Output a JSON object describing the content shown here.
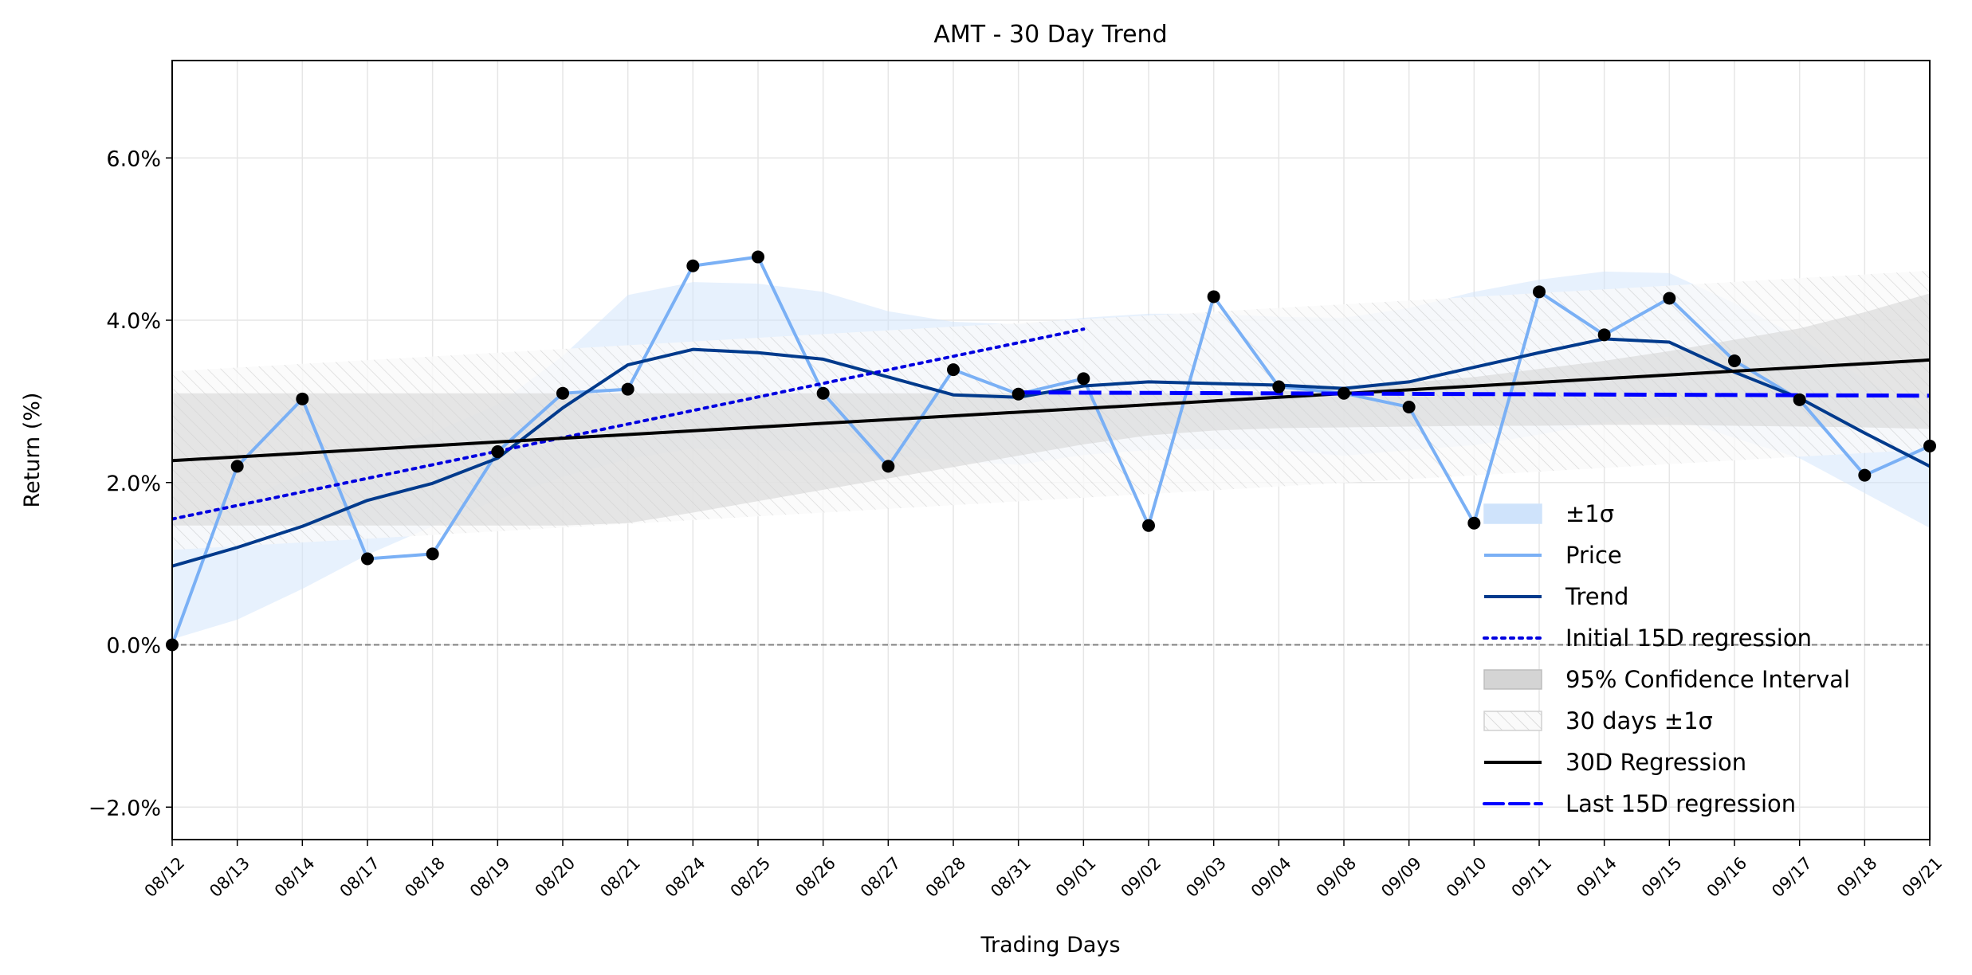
{
  "chart_data": {
    "type": "line",
    "title": "AMT - 30 Day Trend",
    "xlabel": "Trading Days",
    "ylabel": "Return (%)",
    "categories": [
      "08/12",
      "08/13",
      "08/14",
      "08/17",
      "08/18",
      "08/19",
      "08/20",
      "08/21",
      "08/24",
      "08/25",
      "08/26",
      "08/27",
      "08/28",
      "08/31",
      "09/01",
      "09/02",
      "09/03",
      "09/04",
      "09/08",
      "09/09",
      "09/10",
      "09/11",
      "09/14",
      "09/15",
      "09/16",
      "09/17",
      "09/18",
      "09/21"
    ],
    "ylim": [
      -2.4,
      7.2
    ],
    "yticks": [
      -2.0,
      0.0,
      2.0,
      4.0,
      6.0
    ],
    "ytick_labels": [
      "−2.0%",
      "0.0%",
      "2.0%",
      "4.0%",
      "6.0%"
    ],
    "grid": true,
    "legend_position": "lower-right",
    "zero_line": 0.0,
    "series": [
      {
        "name": "Price",
        "color": "#7ab0f5",
        "style": "solid",
        "markers": true,
        "values": [
          0.0,
          2.2,
          3.03,
          1.06,
          1.12,
          2.38,
          3.1,
          3.15,
          4.67,
          4.78,
          3.1,
          2.2,
          3.39,
          3.09,
          3.28,
          1.47,
          4.29,
          3.18,
          3.1,
          2.93,
          1.5,
          4.35,
          3.82,
          4.27,
          3.5,
          3.02,
          2.09,
          2.45
        ]
      },
      {
        "name": "Trend",
        "color": "#003a8c",
        "style": "solid",
        "values": [
          0.97,
          1.2,
          1.46,
          1.78,
          1.99,
          2.3,
          2.92,
          3.45,
          3.64,
          3.6,
          3.52,
          3.3,
          3.08,
          3.05,
          3.19,
          3.24,
          3.22,
          3.2,
          3.16,
          3.24,
          3.42,
          3.6,
          3.77,
          3.73,
          3.36,
          3.04,
          2.61,
          2.2
        ]
      },
      {
        "name": "Initial 15D regression",
        "color": "#0000e0",
        "style": "dotted",
        "x_range": [
          0,
          14
        ],
        "y_range": [
          1.55,
          3.89
        ]
      },
      {
        "name": "30D Regression",
        "color": "#000000",
        "style": "solid",
        "x_range": [
          0,
          27
        ],
        "y_range": [
          2.27,
          3.51
        ]
      },
      {
        "name": "Last 15D regression",
        "color": "#0000ff",
        "style": "dashed",
        "x_range": [
          13,
          27
        ],
        "y_range": [
          3.11,
          3.07
        ]
      }
    ],
    "bands": [
      {
        "name": "±1σ",
        "color": "#cfe3fb",
        "style": "fill",
        "lower": [
          0.07,
          0.31,
          0.69,
          1.11,
          1.46,
          1.79,
          2.07,
          2.29,
          2.42,
          2.4,
          2.38,
          2.34,
          2.26,
          2.22,
          2.34,
          2.4,
          2.41,
          2.4,
          2.33,
          2.4,
          2.46,
          2.59,
          2.74,
          2.81,
          2.55,
          2.3,
          1.87,
          1.44
        ],
        "upper": [
          1.5,
          1.75,
          2.11,
          2.35,
          2.61,
          2.96,
          3.56,
          4.31,
          4.47,
          4.45,
          4.35,
          4.11,
          3.98,
          3.95,
          4.03,
          4.08,
          4.08,
          4.04,
          4.03,
          4.15,
          4.35,
          4.5,
          4.6,
          4.58,
          4.21,
          3.79,
          3.27,
          2.84
        ]
      },
      {
        "name": "95% Confidence Interval",
        "color": "#d4d4d4",
        "style": "fill",
        "lower": [
          1.47,
          1.47,
          1.47,
          1.47,
          1.47,
          1.47,
          1.47,
          1.5,
          1.63,
          1.77,
          1.91,
          2.05,
          2.19,
          2.33,
          2.47,
          2.58,
          2.64,
          2.67,
          2.68,
          2.69,
          2.7,
          2.7,
          2.71,
          2.71,
          2.7,
          2.69,
          2.68,
          2.66
        ],
        "upper": [
          3.1,
          3.1,
          3.1,
          3.1,
          3.1,
          3.1,
          3.1,
          3.1,
          3.1,
          3.1,
          3.1,
          3.1,
          3.1,
          3.1,
          3.1,
          3.1,
          3.1,
          3.12,
          3.17,
          3.23,
          3.3,
          3.4,
          3.5,
          3.62,
          3.76,
          3.9,
          4.1,
          4.33
        ]
      },
      {
        "name": "30 days ±1σ",
        "color": "#c8c8c8",
        "style": "hatch",
        "x_range": [
          0,
          27
        ],
        "lower_range": [
          1.17,
          2.41
        ],
        "upper_range": [
          3.37,
          4.61
        ]
      }
    ]
  }
}
